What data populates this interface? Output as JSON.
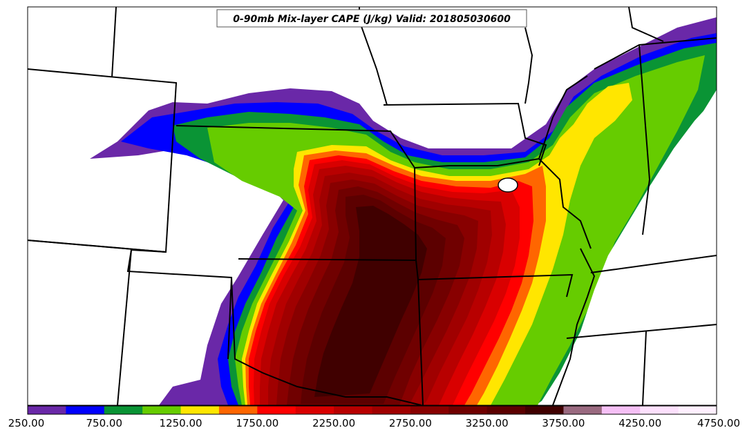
{
  "map": {
    "title": "0-90mb Mix-layer CAPE (J/kg) Valid: 201805030600"
  },
  "colorbar": {
    "bins": [
      {
        "color": "#6a28a8"
      },
      {
        "color": "#0000ff"
      },
      {
        "color": "#0a9435"
      },
      {
        "color": "#66cc00"
      },
      {
        "color": "#ffe600"
      },
      {
        "color": "#ff6600"
      },
      {
        "color": "#ff0000"
      },
      {
        "color": "#d90000"
      },
      {
        "color": "#b80000"
      },
      {
        "color": "#a00000"
      },
      {
        "color": "#880000"
      },
      {
        "color": "#700000"
      },
      {
        "color": "#5c0000"
      },
      {
        "color": "#400000"
      },
      {
        "color": "#9a6a80"
      },
      {
        "color": "#f6c0f6"
      },
      {
        "color": "#fde0fd"
      },
      {
        "color": "#fff0ff"
      }
    ],
    "tick_labels": [
      "250.00",
      "750.00",
      "1250.00",
      "1750.00",
      "2250.00",
      "2750.00",
      "3250.00",
      "3750.00",
      "4250.00",
      "4750.00"
    ]
  }
}
